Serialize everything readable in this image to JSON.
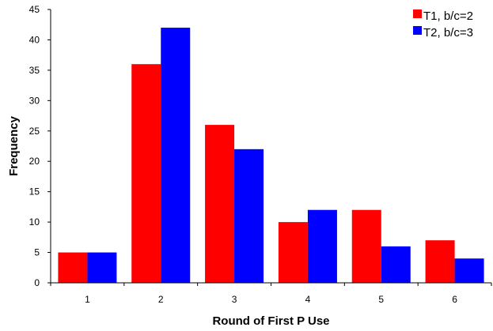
{
  "chart_data": {
    "type": "bar",
    "title": "",
    "xlabel": "Round of First P Use",
    "ylabel": "Frequency",
    "categories": [
      "1",
      "2",
      "3",
      "4",
      "5",
      "6"
    ],
    "series": [
      {
        "name": "T1, b/c=2",
        "color": "#ff0000",
        "values": [
          5,
          36,
          26,
          10,
          12,
          7
        ]
      },
      {
        "name": "T2, b/c=3",
        "color": "#0000ff",
        "values": [
          5,
          42,
          22,
          12,
          6,
          4
        ]
      }
    ],
    "ylim": [
      0,
      45
    ],
    "yticks": [
      "0",
      "5",
      "10",
      "15",
      "20",
      "25",
      "30",
      "35",
      "40",
      "45"
    ],
    "grid": false,
    "legend_position": "top-right"
  }
}
